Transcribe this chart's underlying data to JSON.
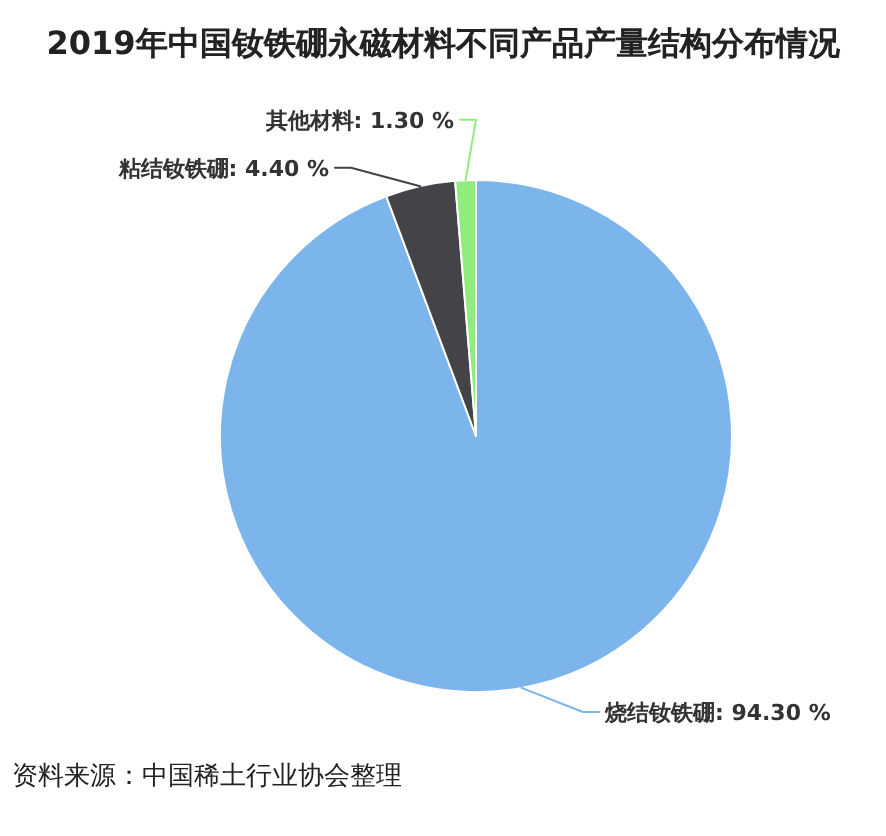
{
  "chart_data": {
    "type": "pie",
    "title": "2019年中国钕铁硼永磁材料不同产品产量结构分布情况",
    "categories": [
      "烧结钕铁硼",
      "粘结钕铁硼",
      "其他材料"
    ],
    "values": [
      94.3,
      4.4,
      1.3
    ],
    "colors": [
      "#7cb5ec",
      "#434348",
      "#90ed7d"
    ],
    "value_labels": [
      "94.30 %",
      "4.40 %",
      "1.30 %"
    ],
    "annotations": [
      "资料来源：中国稀土行业协会整理"
    ]
  }
}
